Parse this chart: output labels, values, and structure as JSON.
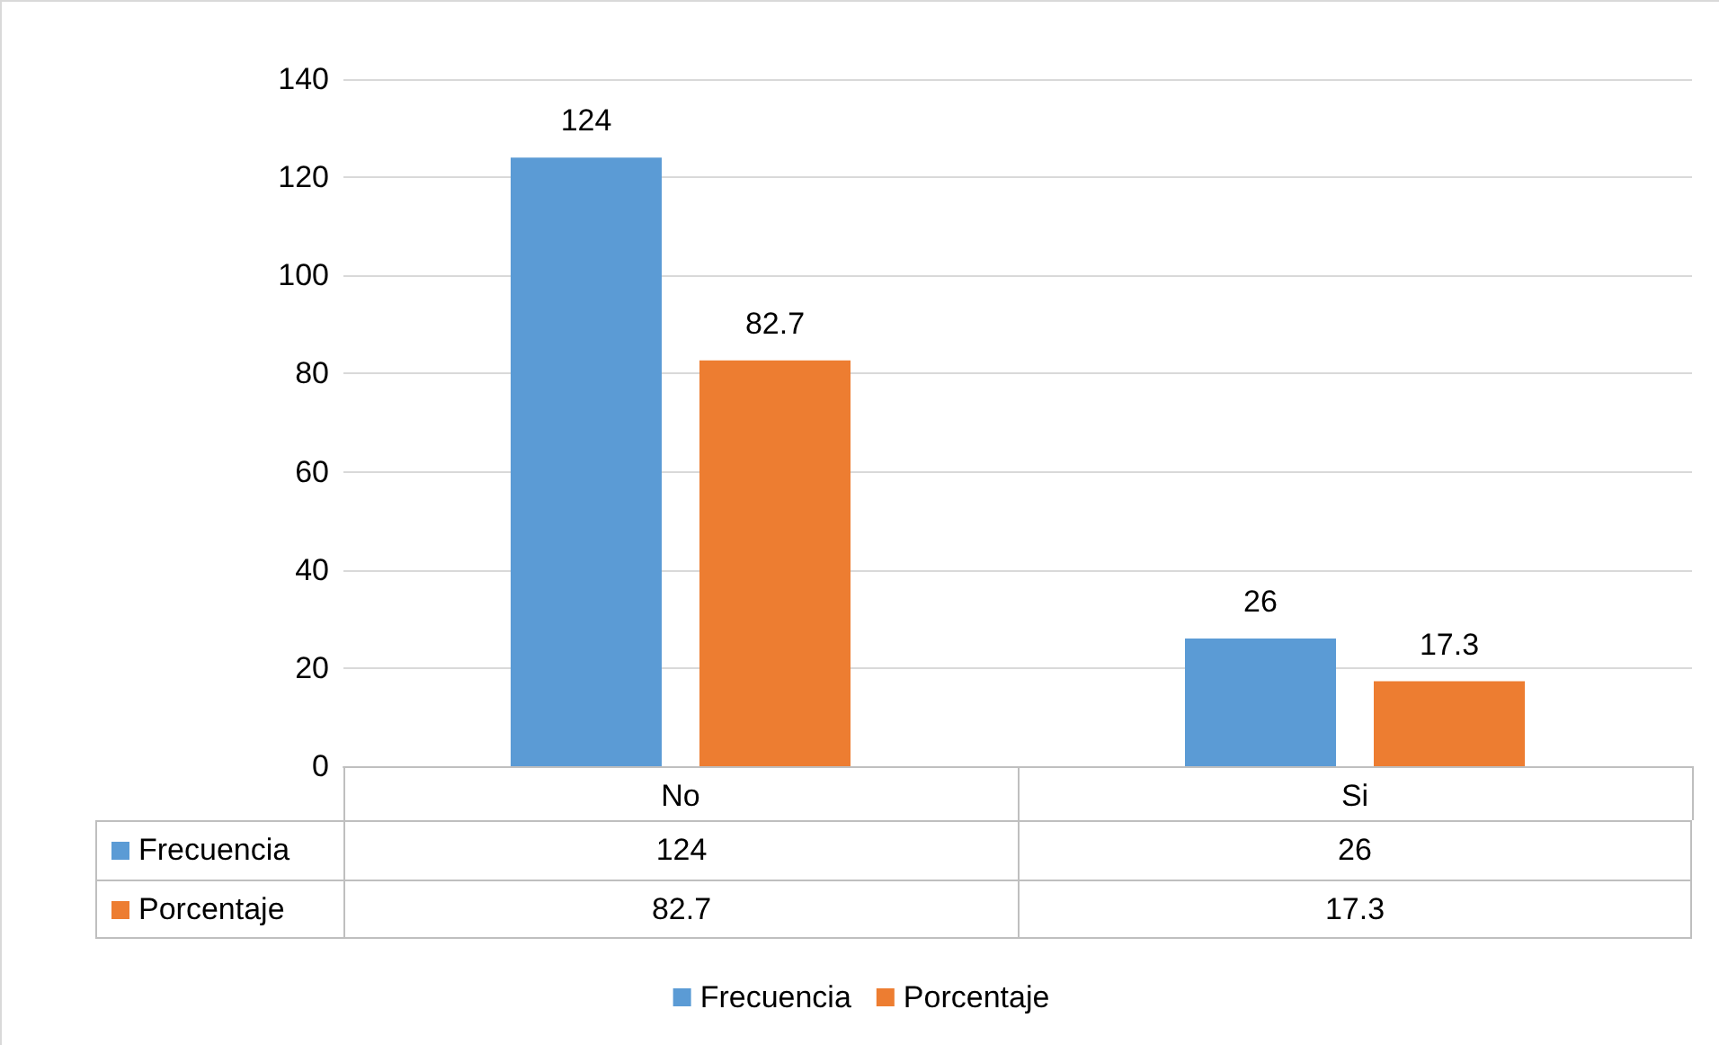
{
  "chart_data": {
    "type": "bar",
    "categories": [
      "No",
      "Si"
    ],
    "series": [
      {
        "name": "Frecuencia",
        "color": "#5b9bd5",
        "values": [
          124,
          26
        ],
        "value_labels": [
          "124",
          "26"
        ]
      },
      {
        "name": "Porcentaje",
        "color": "#ed7d31",
        "values": [
          82.7,
          17.3
        ],
        "value_labels": [
          "82.7",
          "17.3"
        ]
      }
    ],
    "ylim": [
      0,
      140
    ],
    "yticks": [
      0,
      20,
      40,
      60,
      80,
      100,
      120,
      140
    ],
    "grid": "y",
    "legend": "bottom",
    "data_labels": true
  }
}
